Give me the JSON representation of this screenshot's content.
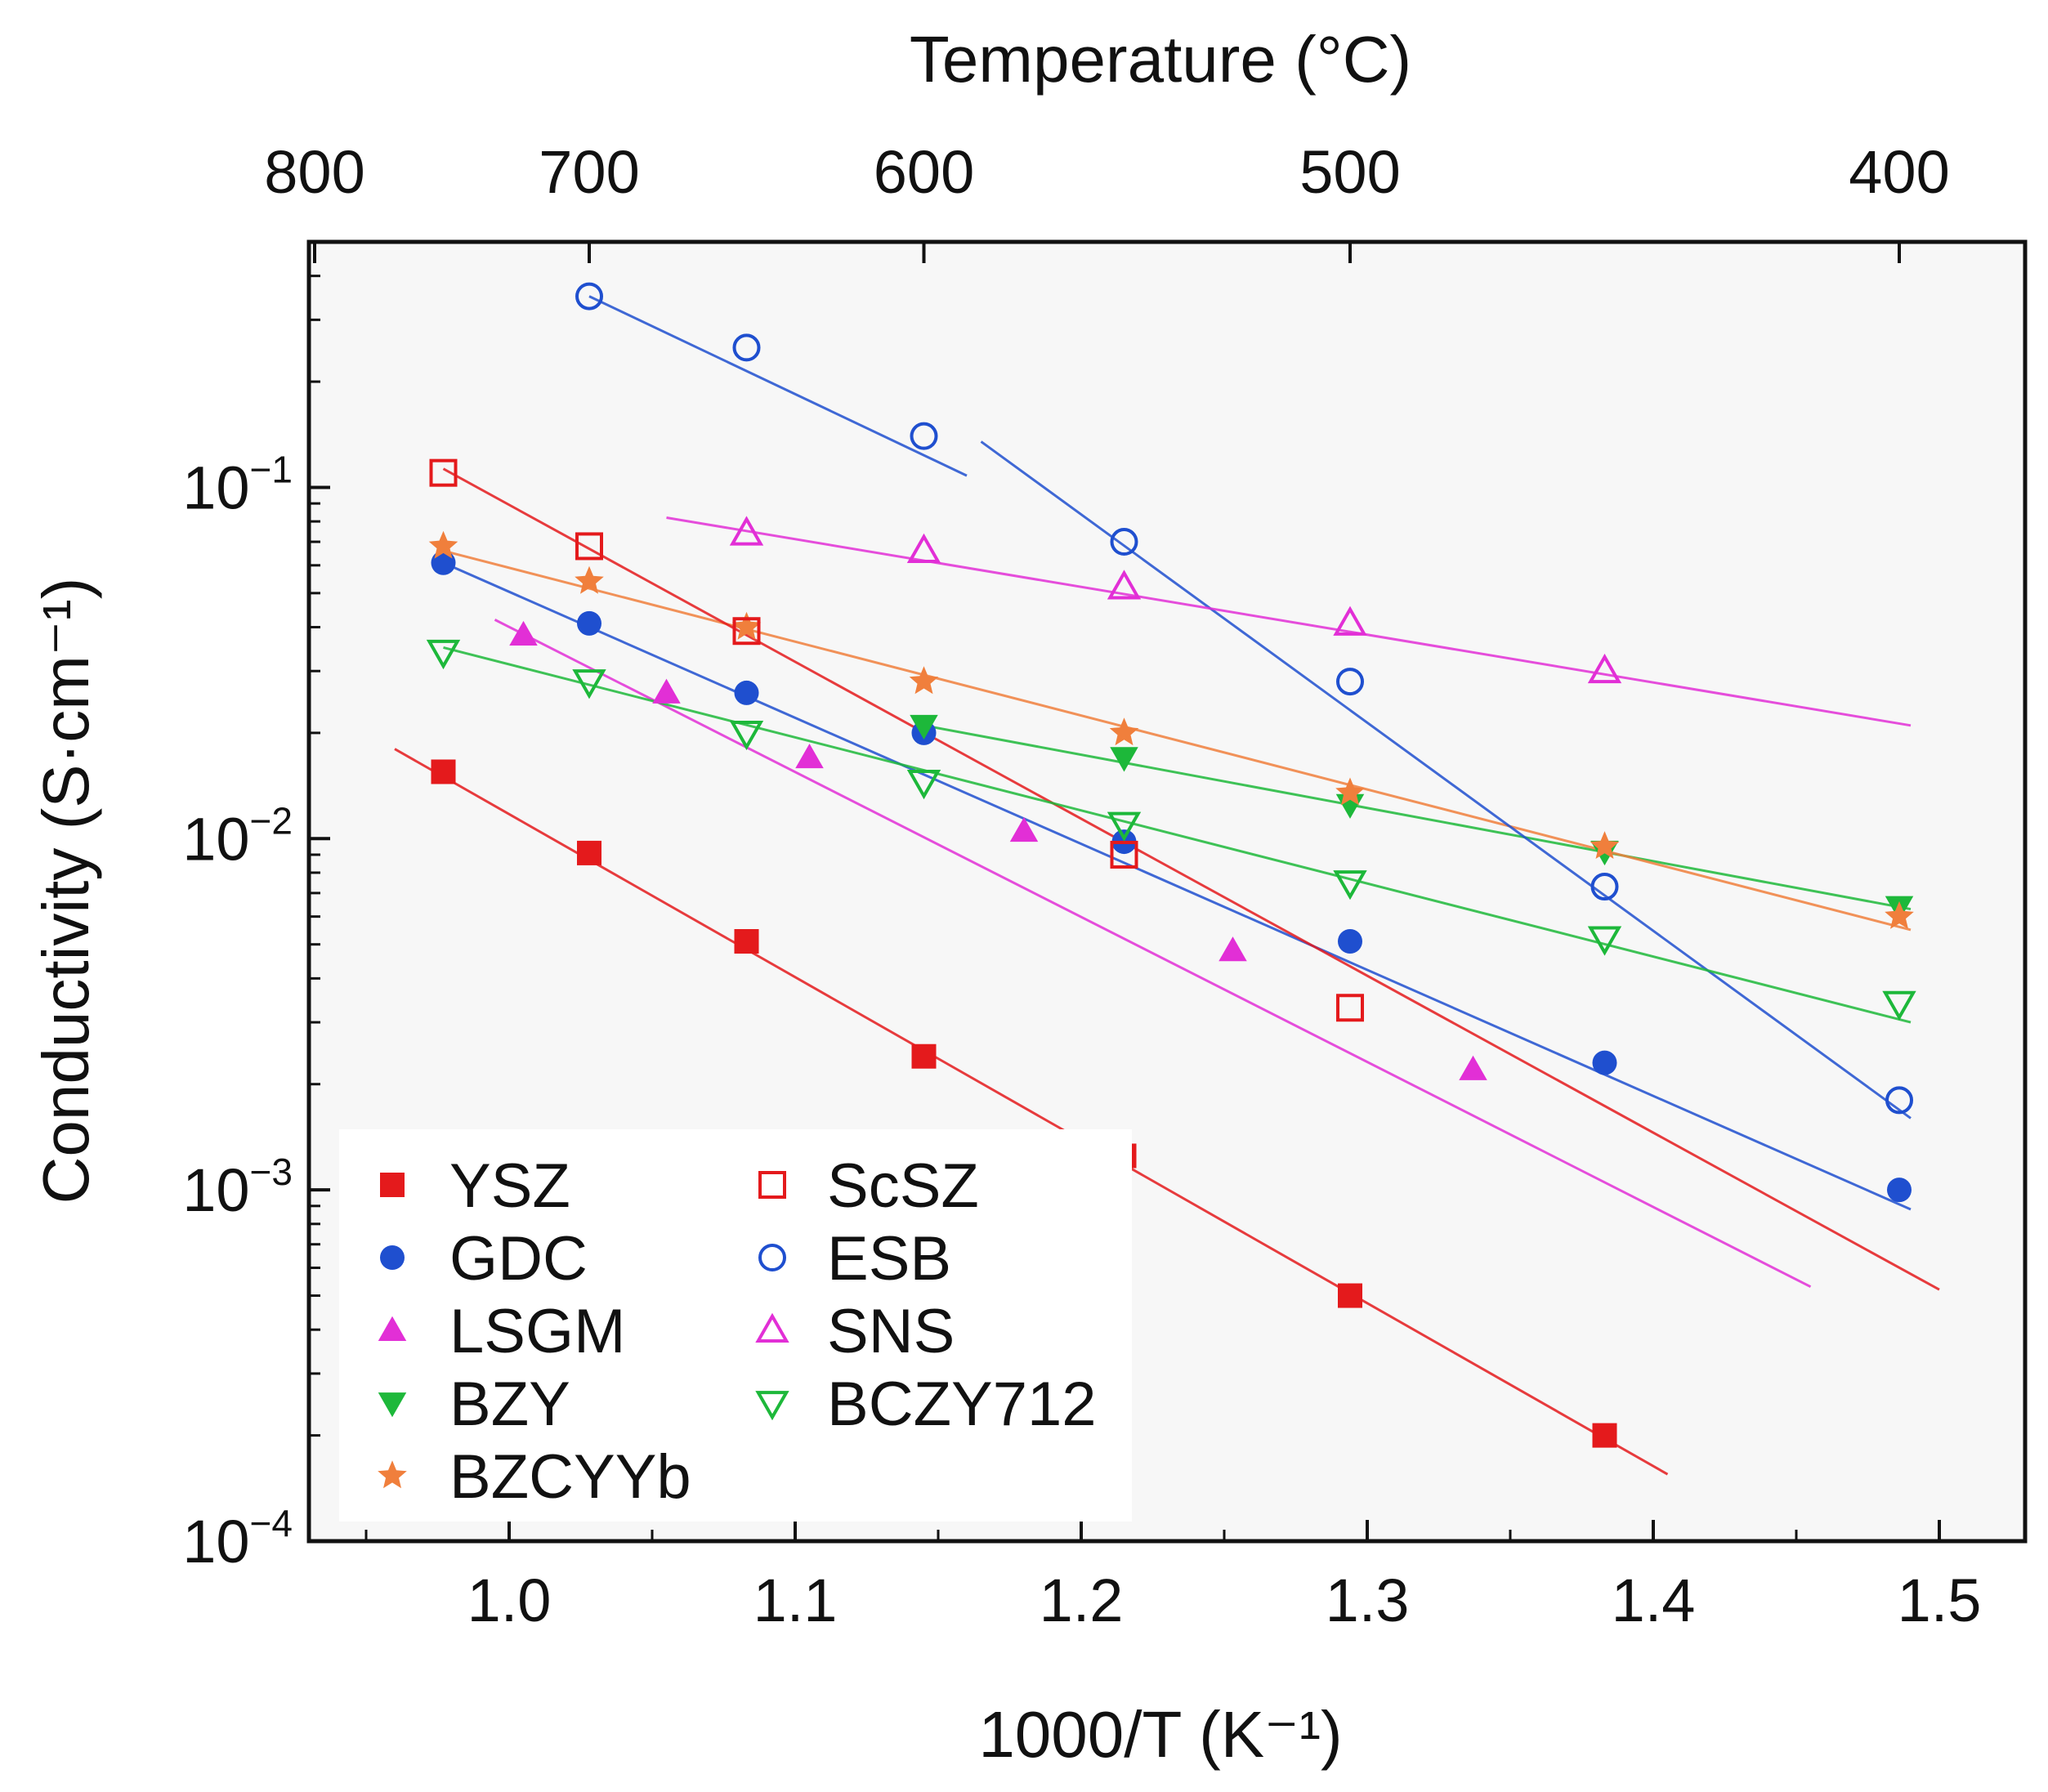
{
  "chart_data": {
    "type": "scatter",
    "title": "",
    "xlabel": "1000/T (K⁻¹)",
    "ylabel": "Conductivity (S·cm⁻¹)",
    "top_xlabel": "Temperature (°C)",
    "xlim": [
      0.93,
      1.53
    ],
    "ylim": [
      0.0001,
      0.5
    ],
    "yscale": "log",
    "grid": false,
    "legend_position": "bottom-left",
    "x_ticks": [
      {
        "value": 1.0,
        "label": "1.0"
      },
      {
        "value": 1.1,
        "label": "1.1"
      },
      {
        "value": 1.2,
        "label": "1.2"
      },
      {
        "value": 1.3,
        "label": "1.3"
      },
      {
        "value": 1.4,
        "label": "1.4"
      },
      {
        "value": 1.5,
        "label": "1.5"
      }
    ],
    "x_minor_ticks": [
      0.95,
      1.05,
      1.15,
      1.25,
      1.35,
      1.45
    ],
    "y_ticks": [
      {
        "value": 0.1,
        "base": "10",
        "exp": "−1"
      },
      {
        "value": 0.01,
        "base": "10",
        "exp": "−2"
      },
      {
        "value": 0.001,
        "base": "10",
        "exp": "−3"
      },
      {
        "value": 0.0001,
        "base": "10",
        "exp": "−4"
      }
    ],
    "top_ticks": [
      {
        "label": "800",
        "x": 0.932
      },
      {
        "label": "700",
        "x": 1.028
      },
      {
        "label": "600",
        "x": 1.145
      },
      {
        "label": "500",
        "x": 1.294
      },
      {
        "label": "400",
        "x": 1.486
      }
    ],
    "series": [
      {
        "name": "YSZ",
        "marker": "square",
        "filled": true,
        "color": "#e41a1c",
        "x": [
          0.977,
          1.028,
          1.083,
          1.145,
          1.215,
          1.294,
          1.383
        ],
        "y": [
          0.0155,
          0.0091,
          0.0051,
          0.0024,
          0.00125,
          0.0005,
          0.0002
        ],
        "fit": {
          "x": [
            0.96,
            1.405
          ],
          "y": [
            0.018,
            0.000155
          ]
        }
      },
      {
        "name": "GDC",
        "marker": "circle",
        "filled": true,
        "color": "#1f4fcf",
        "x": [
          0.977,
          1.028,
          1.083,
          1.145,
          1.215,
          1.294,
          1.383,
          1.486
        ],
        "y": [
          0.061,
          0.041,
          0.026,
          0.02,
          0.0098,
          0.0051,
          0.0023,
          0.001
        ],
        "fit": {
          "x": [
            0.977,
            1.49
          ],
          "y": [
            0.061,
            0.00088
          ]
        }
      },
      {
        "name": "LSGM",
        "marker": "triangle-up",
        "filled": true,
        "color": "#e22fd6",
        "x": [
          1.005,
          1.055,
          1.105,
          1.18,
          1.253,
          1.337
        ],
        "y": [
          0.038,
          0.026,
          0.017,
          0.0105,
          0.0048,
          0.0022
        ],
        "fit": {
          "x": [
            0.995,
            1.455
          ],
          "y": [
            0.042,
            0.00053
          ]
        }
      },
      {
        "name": "BZY",
        "marker": "triangle-down",
        "filled": true,
        "color": "#1db83a",
        "x": [
          1.145,
          1.215,
          1.294,
          1.383,
          1.486
        ],
        "y": [
          0.021,
          0.017,
          0.0125,
          0.0092,
          0.0064
        ],
        "fit": {
          "x": [
            1.145,
            1.49
          ],
          "y": [
            0.021,
            0.0063
          ]
        }
      },
      {
        "name": "BZCYYb",
        "marker": "star",
        "filled": true,
        "color": "#f07f3c",
        "x": [
          0.977,
          1.028,
          1.083,
          1.145,
          1.215,
          1.294,
          1.383,
          1.486
        ],
        "y": [
          0.068,
          0.054,
          0.04,
          0.028,
          0.02,
          0.0135,
          0.0095,
          0.006
        ],
        "fit": {
          "x": [
            0.977,
            1.49
          ],
          "y": [
            0.066,
            0.0055
          ]
        }
      },
      {
        "name": "ScSZ",
        "marker": "square",
        "filled": false,
        "color": "#e41a1c",
        "x": [
          0.977,
          1.028,
          1.083,
          1.215,
          1.294
        ],
        "y": [
          0.11,
          0.068,
          0.039,
          0.009,
          0.0033
        ],
        "fit": {
          "x": [
            0.977,
            1.5
          ],
          "y": [
            0.113,
            0.00052
          ]
        }
      },
      {
        "name": "ESB",
        "marker": "circle",
        "filled": false,
        "color": "#1f4fcf",
        "x": [
          1.028,
          1.083,
          1.145,
          1.215,
          1.294,
          1.383,
          1.486
        ],
        "y": [
          0.35,
          0.25,
          0.14,
          0.07,
          0.028,
          0.0073,
          0.0018
        ],
        "fit": [
          {
            "x": [
              1.028,
              1.16
            ],
            "y": [
              0.35,
              0.108
            ]
          },
          {
            "x": [
              1.165,
              1.49
            ],
            "y": [
              0.135,
              0.0016
            ]
          }
        ]
      },
      {
        "name": "SNS",
        "marker": "triangle-up",
        "filled": false,
        "color": "#e22fd6",
        "x": [
          1.083,
          1.145,
          1.215,
          1.294,
          1.383
        ],
        "y": [
          0.074,
          0.066,
          0.052,
          0.041,
          0.03
        ],
        "fit": {
          "x": [
            1.055,
            1.49
          ],
          "y": [
            0.082,
            0.021
          ]
        }
      },
      {
        "name": "BCZY712",
        "marker": "triangle-down",
        "filled": false,
        "color": "#1db83a",
        "x": [
          0.977,
          1.028,
          1.083,
          1.145,
          1.215,
          1.294,
          1.383,
          1.486
        ],
        "y": [
          0.034,
          0.028,
          0.02,
          0.0145,
          0.011,
          0.0075,
          0.0052,
          0.0034
        ],
        "fit": {
          "x": [
            0.977,
            1.49
          ],
          "y": [
            0.035,
            0.003
          ]
        }
      }
    ]
  }
}
